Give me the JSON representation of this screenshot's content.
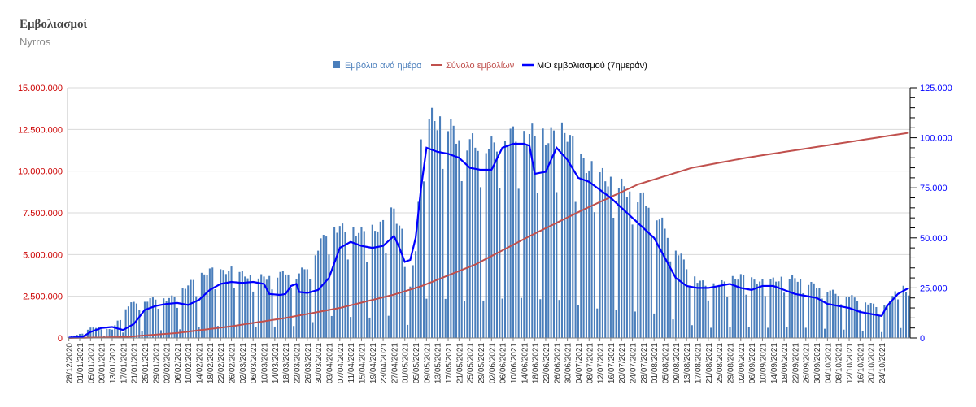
{
  "header": {
    "title": "Εμβολιασμοί",
    "subtitle": "Nyrros"
  },
  "chart_data": {
    "type": "bar",
    "legend_position": "top-center",
    "grid": true,
    "colors": {
      "bars": "#4a7ebb",
      "total_line": "#c0504d",
      "avg_line": "#0000ff",
      "left_axis": "#cc0000",
      "right_axis": "#0000ff"
    },
    "left_axis": {
      "ylim": [
        0,
        15000000
      ],
      "ticks": [
        "0",
        "2.500.000",
        "5.000.000",
        "7.500.000",
        "10.000.000",
        "12.500.000",
        "15.000.000"
      ]
    },
    "right_axis": {
      "ylim": [
        0,
        125000
      ],
      "ticks": [
        "0",
        "25.000",
        "50.000",
        "75.000",
        "100.000",
        "125.000"
      ]
    },
    "x_start_date": "28/12/2020",
    "x_tick_labels": [
      "28/12/2020",
      "01/01/2021",
      "05/01/2021",
      "09/01/2021",
      "13/01/2021",
      "17/01/2021",
      "21/01/2021",
      "25/01/2021",
      "29/01/2021",
      "02/02/2021",
      "06/02/2021",
      "10/02/2021",
      "14/02/2021",
      "18/02/2021",
      "22/02/2021",
      "26/02/2021",
      "02/03/2021",
      "06/03/2021",
      "10/03/2021",
      "14/03/2021",
      "18/03/2021",
      "22/03/2021",
      "26/03/2021",
      "30/03/2021",
      "03/04/2021",
      "07/04/2021",
      "11/04/2021",
      "15/04/2021",
      "19/04/2021",
      "23/04/2021",
      "27/04/2021",
      "01/05/2021",
      "05/05/2021",
      "09/05/2021",
      "13/05/2021",
      "17/05/2021",
      "21/05/2021",
      "25/05/2021",
      "29/05/2021",
      "02/06/2021",
      "06/06/2021",
      "10/06/2021",
      "14/06/2021",
      "18/06/2021",
      "22/06/2021",
      "26/06/2021",
      "30/06/2021",
      "04/07/2021",
      "08/07/2021",
      "12/07/2021",
      "16/07/2021",
      "20/07/2021",
      "24/07/2021",
      "28/07/2021",
      "01/08/2021",
      "05/08/2021",
      "09/08/2021",
      "13/08/2021",
      "17/08/2021",
      "21/08/2021",
      "25/08/2021",
      "29/08/2021",
      "02/09/2021",
      "06/09/2021",
      "10/09/2021",
      "14/09/2021",
      "18/09/2021",
      "22/09/2021",
      "26/09/2021",
      "30/09/2021",
      "04/10/2021",
      "08/10/2021",
      "12/10/2021",
      "16/10/2021",
      "20/10/2021",
      "24/10/2021"
    ],
    "series": [
      {
        "name": "Εμβόλια ανά ημέρα",
        "kind": "bar",
        "axis": "right",
        "anchors": [
          [
            0,
            500
          ],
          [
            4,
            2000
          ],
          [
            8,
            5000
          ],
          [
            12,
            5500
          ],
          [
            16,
            4000
          ],
          [
            20,
            14000
          ],
          [
            24,
            18000
          ],
          [
            28,
            18500
          ],
          [
            32,
            20000
          ],
          [
            36,
            19500
          ],
          [
            40,
            21000
          ],
          [
            44,
            27000
          ],
          [
            48,
            30000
          ],
          [
            52,
            34000
          ],
          [
            56,
            33000
          ],
          [
            60,
            34000
          ],
          [
            64,
            32000
          ],
          [
            68,
            30000
          ],
          [
            72,
            30500
          ],
          [
            76,
            31000
          ],
          [
            80,
            33000
          ],
          [
            84,
            31000
          ],
          [
            88,
            36000
          ],
          [
            92,
            45000
          ],
          [
            96,
            56000
          ],
          [
            100,
            55000
          ],
          [
            104,
            54000
          ],
          [
            108,
            53000
          ],
          [
            112,
            54000
          ],
          [
            116,
            57000
          ],
          [
            120,
            64000
          ],
          [
            124,
            48000
          ],
          [
            126,
            25000
          ],
          [
            128,
            45000
          ],
          [
            130,
            95000
          ],
          [
            132,
            110000
          ],
          [
            136,
            109000
          ],
          [
            140,
            107000
          ],
          [
            144,
            100000
          ],
          [
            148,
            98000
          ],
          [
            152,
            97000
          ],
          [
            156,
            96000
          ],
          [
            160,
            100000
          ],
          [
            164,
            102000
          ],
          [
            168,
            102000
          ],
          [
            172,
            102000
          ],
          [
            176,
            100000
          ],
          [
            180,
            102000
          ],
          [
            184,
            103000
          ],
          [
            188,
            90000
          ],
          [
            192,
            85000
          ],
          [
            196,
            82000
          ],
          [
            200,
            78000
          ],
          [
            204,
            76000
          ],
          [
            208,
            72000
          ],
          [
            212,
            70000
          ],
          [
            216,
            64000
          ],
          [
            220,
            55000
          ],
          [
            224,
            45000
          ],
          [
            228,
            36000
          ],
          [
            232,
            29000
          ],
          [
            236,
            26000
          ],
          [
            240,
            27000
          ],
          [
            244,
            29000
          ],
          [
            248,
            31000
          ],
          [
            252,
            29000
          ],
          [
            256,
            28000
          ],
          [
            260,
            29000
          ],
          [
            264,
            29500
          ],
          [
            268,
            30000
          ],
          [
            272,
            28000
          ],
          [
            276,
            26000
          ],
          [
            280,
            24000
          ],
          [
            284,
            22000
          ],
          [
            288,
            21000
          ],
          [
            292,
            19000
          ],
          [
            296,
            17000
          ],
          [
            300,
            15000
          ],
          [
            304,
            20000
          ],
          [
            306,
            27000
          ],
          [
            308,
            25000
          ],
          [
            310,
            22000
          ]
        ],
        "weekend_factor": 0.75
      },
      {
        "name": "Σύνολο εμβολίων",
        "kind": "line",
        "axis": "left",
        "anchors": [
          [
            0,
            0
          ],
          [
            20,
            50000
          ],
          [
            40,
            300000
          ],
          [
            60,
            700000
          ],
          [
            80,
            1200000
          ],
          [
            100,
            1800000
          ],
          [
            120,
            2600000
          ],
          [
            130,
            3100000
          ],
          [
            150,
            4400000
          ],
          [
            170,
            6100000
          ],
          [
            190,
            7700000
          ],
          [
            210,
            9200000
          ],
          [
            230,
            10200000
          ],
          [
            250,
            10800000
          ],
          [
            270,
            11300000
          ],
          [
            290,
            11800000
          ],
          [
            310,
            12300000
          ]
        ]
      },
      {
        "name": "ΜΟ εμβολιασμού (7ημεράν)",
        "kind": "line",
        "axis": "right",
        "anchors": [
          [
            0,
            200
          ],
          [
            5,
            500
          ],
          [
            8,
            3000
          ],
          [
            12,
            5000
          ],
          [
            16,
            5500
          ],
          [
            20,
            4000
          ],
          [
            24,
            7000
          ],
          [
            28,
            14000
          ],
          [
            32,
            16000
          ],
          [
            36,
            17000
          ],
          [
            40,
            17500
          ],
          [
            44,
            16500
          ],
          [
            48,
            19000
          ],
          [
            52,
            24000
          ],
          [
            56,
            27000
          ],
          [
            60,
            28000
          ],
          [
            64,
            27500
          ],
          [
            68,
            28000
          ],
          [
            72,
            27000
          ],
          [
            74,
            22000
          ],
          [
            78,
            21500
          ],
          [
            80,
            22000
          ],
          [
            82,
            26000
          ],
          [
            84,
            27000
          ],
          [
            85,
            23000
          ],
          [
            88,
            22500
          ],
          [
            92,
            24000
          ],
          [
            96,
            30000
          ],
          [
            100,
            45000
          ],
          [
            104,
            48000
          ],
          [
            108,
            46000
          ],
          [
            112,
            45000
          ],
          [
            116,
            46000
          ],
          [
            120,
            51000
          ],
          [
            122,
            45000
          ],
          [
            124,
            38000
          ],
          [
            126,
            39000
          ],
          [
            128,
            50000
          ],
          [
            130,
            75000
          ],
          [
            132,
            95000
          ],
          [
            136,
            93000
          ],
          [
            140,
            92000
          ],
          [
            144,
            90000
          ],
          [
            148,
            85000
          ],
          [
            152,
            84000
          ],
          [
            156,
            84000
          ],
          [
            160,
            95000
          ],
          [
            164,
            97000
          ],
          [
            168,
            97000
          ],
          [
            170,
            96000
          ],
          [
            172,
            82000
          ],
          [
            176,
            83000
          ],
          [
            180,
            95000
          ],
          [
            184,
            89000
          ],
          [
            188,
            80000
          ],
          [
            192,
            78000
          ],
          [
            196,
            74000
          ],
          [
            200,
            70000
          ],
          [
            204,
            65000
          ],
          [
            208,
            60000
          ],
          [
            212,
            55000
          ],
          [
            216,
            50000
          ],
          [
            220,
            40000
          ],
          [
            224,
            30000
          ],
          [
            228,
            26000
          ],
          [
            232,
            25000
          ],
          [
            236,
            25000
          ],
          [
            240,
            26000
          ],
          [
            244,
            27000
          ],
          [
            248,
            25000
          ],
          [
            252,
            24000
          ],
          [
            256,
            26000
          ],
          [
            260,
            26000
          ],
          [
            264,
            24000
          ],
          [
            268,
            22000
          ],
          [
            272,
            21000
          ],
          [
            276,
            20000
          ],
          [
            280,
            17000
          ],
          [
            284,
            16000
          ],
          [
            288,
            15000
          ],
          [
            292,
            13000
          ],
          [
            296,
            12000
          ],
          [
            300,
            11000
          ],
          [
            302,
            16000
          ],
          [
            306,
            22000
          ],
          [
            310,
            25000
          ]
        ]
      }
    ]
  }
}
